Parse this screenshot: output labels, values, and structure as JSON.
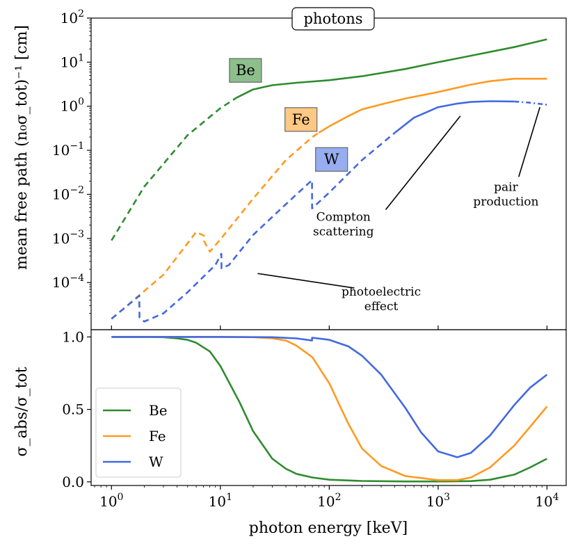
{
  "title": "photons",
  "colors": {
    "Be": "#2e8b2e",
    "Fe": "#ff9a1f",
    "W": "#4169e1"
  },
  "chart_data": [
    {
      "type": "line",
      "title": "photons",
      "xscale": "log",
      "yscale": "log",
      "xlim": [
        0.65,
        15000
      ],
      "ylim": [
        8.5e-06,
        100
      ],
      "ylabel": "mean free path (n₀σ_tot)⁻¹ [cm]",
      "y_ticks": [
        {
          "value": 0.0001,
          "base": "10",
          "exp": "−4"
        },
        {
          "value": 0.001,
          "base": "10",
          "exp": "−3"
        },
        {
          "value": 0.01,
          "base": "10",
          "exp": "−2"
        },
        {
          "value": 0.1,
          "base": "10",
          "exp": "−1"
        },
        {
          "value": 1,
          "base": "10",
          "exp": "0"
        },
        {
          "value": 10,
          "base": "10",
          "exp": "1"
        },
        {
          "value": 100,
          "base": "10",
          "exp": "2"
        }
      ],
      "series": [
        {
          "name": "Be",
          "color": "#2e8b2e",
          "style": "dashed",
          "x": [
            1,
            2,
            5,
            10,
            14
          ],
          "y": [
            0.0009,
            0.015,
            0.22,
            0.9,
            1.55
          ]
        },
        {
          "name": "Be",
          "color": "#2e8b2e",
          "style": "solid",
          "x": [
            14,
            20,
            30,
            50,
            100,
            200,
            500,
            1000,
            2000,
            5000,
            10000
          ],
          "y": [
            1.55,
            2.4,
            3.0,
            3.4,
            3.9,
            4.8,
            7.0,
            10.0,
            14.0,
            22.0,
            33.0
          ]
        },
        {
          "name": "Fe",
          "color": "#ff9a1f",
          "style": "dashed",
          "x": [
            1,
            3,
            6,
            7.1,
            7.12,
            8,
            10,
            20,
            40,
            70,
            80
          ],
          "y": [
            1.5e-05,
            0.00015,
            0.0014,
            0.00115,
            0.00085,
            0.0005,
            0.00095,
            0.008,
            0.06,
            0.2,
            0.25
          ]
        },
        {
          "name": "Fe",
          "color": "#ff9a1f",
          "style": "solid",
          "x": [
            80,
            100,
            150,
            200,
            300,
            500,
            1000,
            2000,
            3000,
            5000,
            10000
          ],
          "y": [
            0.25,
            0.35,
            0.6,
            0.85,
            1.1,
            1.5,
            2.1,
            3.1,
            3.7,
            4.2,
            4.2
          ]
        },
        {
          "name": "W",
          "color": "#4169e1",
          "style": "dashed",
          "x": [
            1,
            1.8,
            1.81,
            2,
            3,
            5,
            9,
            10.2,
            10.25,
            12,
            20,
            40,
            69.5,
            69.6,
            100,
            200,
            400
          ],
          "y": [
            1.5e-05,
            5e-05,
            1.6e-05,
            1.3e-05,
            2e-05,
            6e-05,
            0.00025,
            0.00045,
            0.00021,
            0.00025,
            0.0012,
            0.006,
            0.021,
            0.0048,
            0.011,
            0.06,
            0.25
          ]
        },
        {
          "name": "W",
          "color": "#4169e1",
          "style": "solid",
          "x": [
            400,
            600,
            1000,
            1500,
            2000,
            3000,
            5000
          ],
          "y": [
            0.25,
            0.55,
            0.95,
            1.15,
            1.25,
            1.3,
            1.28
          ]
        },
        {
          "name": "W",
          "color": "#4169e1",
          "style": "dashdot",
          "x": [
            5000,
            7000,
            10000
          ],
          "y": [
            1.28,
            1.2,
            1.08
          ]
        }
      ],
      "element_tags": [
        {
          "text": "Be",
          "x": 17,
          "y": 6.5,
          "color": "#2e8b2e"
        },
        {
          "text": "Fe",
          "x": 55,
          "y": 0.5,
          "color": "#ff9a1f"
        },
        {
          "text": "W",
          "x": 105,
          "y": 0.062,
          "color": "#4169e1"
        }
      ],
      "annotations": [
        {
          "lines": [
            "photoelectric",
            " effect"
          ],
          "text_x": 300,
          "text_y": 5e-05,
          "arrow_from": [
            170,
            7.5e-05
          ],
          "arrow_to": [
            22,
            0.00016
          ]
        },
        {
          "lines": [
            "Compton",
            " scattering"
          ],
          "text_x": 135,
          "text_y": 0.0025,
          "arrow_from": [
            330,
            0.0045
          ],
          "arrow_to": [
            1600,
            0.6
          ]
        },
        {
          "lines": [
            " pair",
            "production"
          ],
          "text_x": 4200,
          "text_y": 0.012,
          "arrow_from": [
            5500,
            0.025
          ],
          "arrow_to": [
            8600,
            0.95
          ]
        }
      ]
    },
    {
      "type": "line",
      "xscale": "log",
      "xlim": [
        0.65,
        15000
      ],
      "ylim": [
        -0.025,
        1.05
      ],
      "ylabel": "σ_abs/σ_tot",
      "xlabel": "photon energy [keV]",
      "y_ticks": [
        {
          "value": 0.0,
          "label": "0.0"
        },
        {
          "value": 0.5,
          "label": "0.5"
        },
        {
          "value": 1.0,
          "label": "1.0"
        }
      ],
      "x_ticks": [
        {
          "value": 1,
          "base": "10",
          "exp": "0"
        },
        {
          "value": 10,
          "base": "10",
          "exp": "1"
        },
        {
          "value": 100,
          "base": "10",
          "exp": "2"
        },
        {
          "value": 1000,
          "base": "10",
          "exp": "3"
        },
        {
          "value": 10000,
          "base": "10",
          "exp": "4"
        }
      ],
      "legend": {
        "position": "lower-left",
        "entries": [
          "Be",
          "Fe",
          "W"
        ]
      },
      "series": [
        {
          "name": "Be",
          "color": "#2e8b2e",
          "x": [
            1,
            2,
            3,
            4,
            5,
            6,
            8,
            10,
            15,
            20,
            30,
            40,
            50,
            70,
            100,
            200,
            500,
            1000,
            2000,
            3000,
            5000,
            7000,
            10000
          ],
          "y": [
            1.0,
            1.0,
            0.998,
            0.99,
            0.98,
            0.96,
            0.9,
            0.8,
            0.55,
            0.35,
            0.16,
            0.09,
            0.055,
            0.03,
            0.015,
            0.006,
            0.003,
            0.003,
            0.005,
            0.015,
            0.05,
            0.1,
            0.16
          ]
        },
        {
          "name": "Fe",
          "color": "#ff9a1f",
          "x": [
            1,
            5,
            10,
            20,
            30,
            40,
            50,
            70,
            100,
            150,
            200,
            300,
            500,
            1000,
            1500,
            2000,
            3000,
            5000,
            7000,
            10000
          ],
          "y": [
            1.0,
            1.0,
            1.0,
            0.998,
            0.99,
            0.975,
            0.94,
            0.86,
            0.68,
            0.4,
            0.23,
            0.11,
            0.04,
            0.012,
            0.012,
            0.03,
            0.1,
            0.25,
            0.38,
            0.52
          ]
        },
        {
          "name": "W",
          "color": "#4169e1",
          "x": [
            1,
            10,
            30,
            50,
            69.5,
            69.6,
            100,
            150,
            200,
            300,
            500,
            700,
            1000,
            1500,
            2000,
            3000,
            5000,
            7000,
            10000
          ],
          "y": [
            1.0,
            1.0,
            0.998,
            0.99,
            0.975,
            0.995,
            0.98,
            0.935,
            0.87,
            0.74,
            0.51,
            0.34,
            0.21,
            0.17,
            0.2,
            0.32,
            0.53,
            0.65,
            0.74
          ]
        }
      ]
    }
  ]
}
